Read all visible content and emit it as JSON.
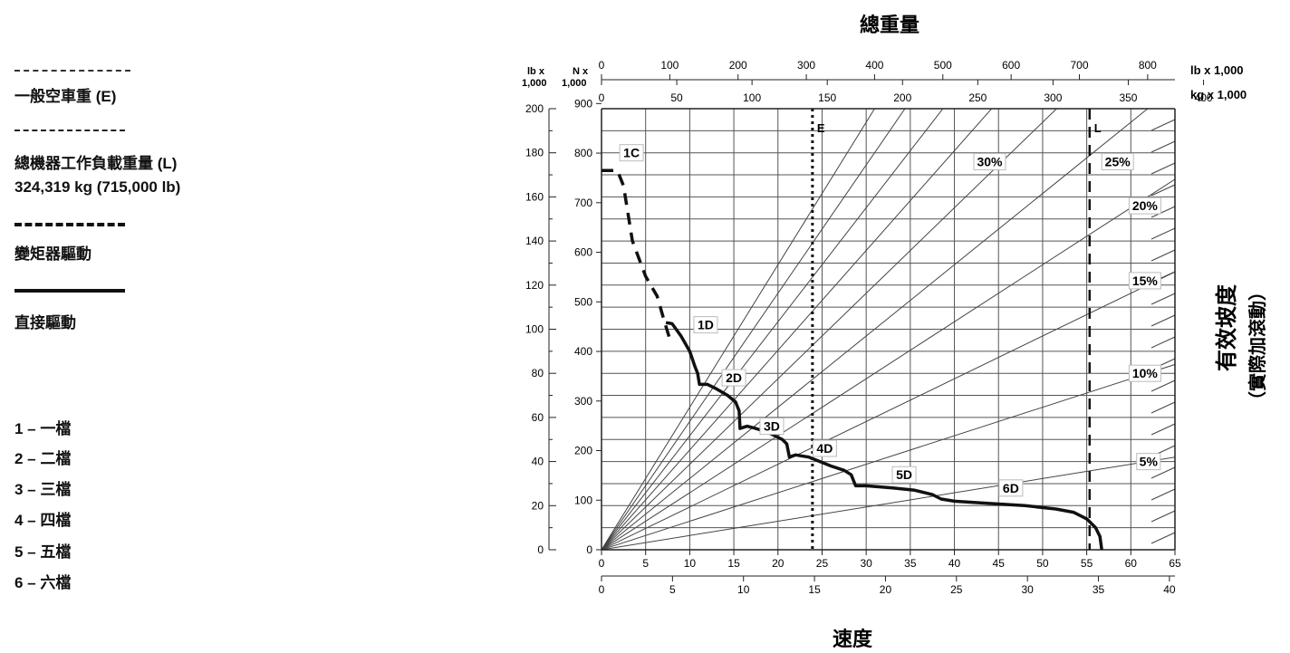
{
  "legend": {
    "empty_weight_label": "一般空車重 (E)",
    "gross_weight_label": "總機器工作負載重量 (L)",
    "gross_weight_value": "324,319 kg (715,000 lb)",
    "converter_drive_label": "變矩器驅動",
    "direct_drive_label": "直接驅動",
    "gears": [
      "1 – 一檔",
      "2 – 二檔",
      "3 – 三檔",
      "4 – 四檔",
      "5 – 五檔",
      "6 – 六檔"
    ]
  },
  "chart_data": {
    "type": "line",
    "title": "總重量",
    "xlabel": "速度",
    "right_label_main": "有效坡度",
    "right_label_sub": "（實際加滾動）",
    "left_units_lb": "lb x\n1,000",
    "left_units_n": "N x\n1,000",
    "top_units_lb": "lb x 1,000",
    "top_units_kg": "kg x 1,000",
    "x_mph_ticks": [
      "0",
      "5",
      "10",
      "15",
      "20",
      "25",
      "30",
      "35",
      "40",
      "45",
      "50",
      "55",
      "60",
      "65"
    ],
    "x_kmh_ticks": [
      "0",
      "5",
      "10",
      "15",
      "20",
      "25",
      "30",
      "35",
      "40"
    ],
    "y_lb_ticks": [
      "0",
      "20",
      "40",
      "60",
      "80",
      "100",
      "120",
      "140",
      "160",
      "180",
      "200"
    ],
    "y_n_ticks": [
      "0",
      "100",
      "200",
      "300",
      "400",
      "500",
      "600",
      "700",
      "800",
      "900"
    ],
    "top_lb_ticks": [
      "0",
      "100",
      "200",
      "300",
      "400",
      "500",
      "600",
      "700",
      "800"
    ],
    "top_kg_ticks": [
      "0",
      "50",
      "100",
      "150",
      "200",
      "250",
      "300",
      "350",
      "400"
    ],
    "xlim_mph": [
      0,
      65
    ],
    "ylim_lb": [
      0,
      200
    ],
    "empty_line": {
      "label": "E",
      "weight_lb": 309
    },
    "gross_line": {
      "label": "L",
      "weight_lb": 715
    },
    "grade_lines": [
      {
        "label": "30%",
        "grade": 30
      },
      {
        "label": "25%",
        "grade": 25
      },
      {
        "label": "20%",
        "grade": 20
      },
      {
        "label": "15%",
        "grade": 15
      },
      {
        "label": "10%",
        "grade": 10
      },
      {
        "label": "5%",
        "grade": 5
      }
    ],
    "extra_grade_lines": [
      35,
      40,
      45,
      50
    ],
    "torque_converter_curve": {
      "name": "1C",
      "points": [
        [
          0,
          172
        ],
        [
          1.8,
          172
        ],
        [
          2.5,
          165
        ],
        [
          3.5,
          140
        ],
        [
          5,
          124
        ],
        [
          6.3,
          115
        ],
        [
          7.1,
          104
        ],
        [
          7.7,
          96
        ]
      ]
    },
    "direct_drive_curve": {
      "points": [
        [
          7.3,
          103
        ],
        [
          8,
          102.5
        ],
        [
          9,
          97
        ],
        [
          10,
          90
        ],
        [
          10.6,
          83
        ],
        [
          10.9,
          80
        ],
        [
          11.1,
          75
        ],
        [
          12,
          75
        ],
        [
          13,
          73
        ],
        [
          14.3,
          70
        ],
        [
          15.2,
          67
        ],
        [
          15.6,
          63
        ],
        [
          15.7,
          55
        ],
        [
          16.5,
          56
        ],
        [
          17.5,
          55
        ],
        [
          19,
          53
        ],
        [
          20.5,
          50
        ],
        [
          21,
          48
        ],
        [
          21.3,
          42
        ],
        [
          22,
          43
        ],
        [
          23.5,
          42
        ],
        [
          26,
          38
        ],
        [
          27.5,
          36
        ],
        [
          28.3,
          34
        ],
        [
          28.8,
          29
        ],
        [
          30,
          29
        ],
        [
          33,
          28
        ],
        [
          35.5,
          27
        ],
        [
          37.5,
          25
        ],
        [
          38.5,
          23
        ],
        [
          40,
          22
        ],
        [
          44,
          21
        ],
        [
          48,
          20
        ],
        [
          51.5,
          18.5
        ],
        [
          53.5,
          17
        ],
        [
          55,
          14
        ],
        [
          56,
          10
        ],
        [
          56.5,
          6
        ],
        [
          56.7,
          0
        ]
      ]
    },
    "curve_labels": [
      {
        "label": "1C",
        "x": 3.4,
        "y": 180
      },
      {
        "label": "1D",
        "x": 11.8,
        "y": 102
      },
      {
        "label": "2D",
        "x": 15.0,
        "y": 78
      },
      {
        "label": "3D",
        "x": 19.3,
        "y": 56
      },
      {
        "label": "4D",
        "x": 25.3,
        "y": 46
      },
      {
        "label": "5D",
        "x": 34.3,
        "y": 34
      },
      {
        "label": "6D",
        "x": 46.4,
        "y": 28
      }
    ],
    "grade_label_positions": [
      {
        "label": "30%",
        "x": 44,
        "y": 176
      },
      {
        "label": "25%",
        "x": 58.5,
        "y": 176
      },
      {
        "label": "20%",
        "x": 61.6,
        "y": 156
      },
      {
        "label": "15%",
        "x": 61.6,
        "y": 122
      },
      {
        "label": "10%",
        "x": 61.6,
        "y": 80
      },
      {
        "label": "5%",
        "x": 62.0,
        "y": 40
      }
    ]
  }
}
